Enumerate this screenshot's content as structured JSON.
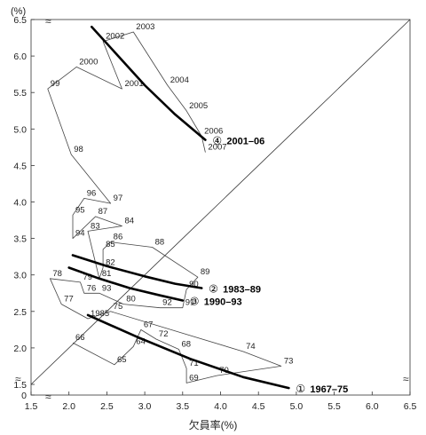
{
  "chart_data": {
    "type": "line",
    "title": "",
    "xlabel": "欠員率(%)",
    "ylabel": "(%)",
    "xlim": [
      1.5,
      6.5
    ],
    "ylim": [
      0,
      6.5
    ],
    "x_ticks": [
      "1.5",
      "2.0",
      "2.5",
      "3.0",
      "3.5",
      "4.0",
      "4.5",
      "5.0",
      "5.5",
      "6.0",
      "6.5"
    ],
    "y_ticks": [
      "0",
      "1.5",
      "2.0",
      "2.5",
      "3.0",
      "3.5",
      "4.0",
      "4.5",
      "5.0",
      "5.5",
      "6.0",
      "6.5"
    ],
    "reference_line": {
      "from": [
        1.5,
        1.5
      ],
      "to": [
        6.5,
        6.5
      ]
    },
    "axis_break_mark": "≈",
    "trajectory": {
      "name": "",
      "points": [
        {
          "label": "66",
          "x": 2.05,
          "y": 2.07
        },
        {
          "label": "65",
          "x": 2.6,
          "y": 1.77
        },
        {
          "label": "64",
          "x": 2.85,
          "y": 2.02
        },
        {
          "label": "67",
          "x": 2.95,
          "y": 2.25
        },
        {
          "label": "72",
          "x": 3.15,
          "y": 2.12
        },
        {
          "label": "68",
          "x": 3.45,
          "y": 1.98
        },
        {
          "label": "71",
          "x": 3.55,
          "y": 1.72
        },
        {
          "label": "69",
          "x": 3.55,
          "y": 1.52
        },
        {
          "label": "70",
          "x": 3.95,
          "y": 1.62
        },
        {
          "label": "73",
          "x": 4.8,
          "y": 1.75
        },
        {
          "label": "74",
          "x": 4.3,
          "y": 1.95
        },
        {
          "label": "75",
          "x": 2.55,
          "y": 2.5
        },
        {
          "label": "1985",
          "x": 2.25,
          "y": 2.4
        },
        {
          "label": "77",
          "x": 1.9,
          "y": 2.6
        },
        {
          "label": "78",
          "x": 1.75,
          "y": 2.95
        },
        {
          "label": "79",
          "x": 2.15,
          "y": 2.9
        },
        {
          "label": "76",
          "x": 2.2,
          "y": 2.75
        },
        {
          "label": "93",
          "x": 2.4,
          "y": 2.75
        },
        {
          "label": "80",
          "x": 2.72,
          "y": 2.6
        },
        {
          "label": "92",
          "x": 3.2,
          "y": 2.55
        },
        {
          "label": "91",
          "x": 3.5,
          "y": 2.55
        },
        {
          "label": "90",
          "x": 3.55,
          "y": 2.8
        },
        {
          "label": "89",
          "x": 3.7,
          "y": 2.97
        },
        {
          "label": "88",
          "x": 3.1,
          "y": 3.38
        },
        {
          "label": "86",
          "x": 2.55,
          "y": 3.45
        },
        {
          "label": "85",
          "x": 2.45,
          "y": 3.35
        },
        {
          "label": "82",
          "x": 2.45,
          "y": 3.1
        },
        {
          "label": "81",
          "x": 2.4,
          "y": 2.95
        },
        {
          "label": "83",
          "x": 2.25,
          "y": 3.6
        },
        {
          "label": "84",
          "x": 2.7,
          "y": 3.67
        },
        {
          "label": "87",
          "x": 2.35,
          "y": 3.8
        },
        {
          "label": "94",
          "x": 2.05,
          "y": 3.5
        },
        {
          "label": "95",
          "x": 2.05,
          "y": 3.82
        },
        {
          "label": "96",
          "x": 2.2,
          "y": 4.05
        },
        {
          "label": "97",
          "x": 2.55,
          "y": 3.98
        },
        {
          "label": "98",
          "x": 2.03,
          "y": 4.65
        },
        {
          "label": "99",
          "x": 1.72,
          "y": 5.55
        },
        {
          "label": "2000",
          "x": 2.1,
          "y": 5.85
        },
        {
          "label": "2001",
          "x": 2.7,
          "y": 5.55
        },
        {
          "label": "2002",
          "x": 2.45,
          "y": 6.2
        },
        {
          "label": "2003",
          "x": 2.85,
          "y": 6.33
        },
        {
          "label": "2004",
          "x": 3.3,
          "y": 5.6
        },
        {
          "label": "2005",
          "x": 3.55,
          "y": 5.25
        },
        {
          "label": "2006",
          "x": 3.75,
          "y": 4.9
        },
        {
          "label": "2007",
          "x": 3.8,
          "y": 4.68
        }
      ]
    },
    "fitted_curves": [
      {
        "circle": "①",
        "label": "1967–75",
        "points": [
          [
            2.25,
            2.45
          ],
          [
            2.9,
            2.15
          ],
          [
            3.6,
            1.85
          ],
          [
            4.3,
            1.6
          ],
          [
            4.9,
            1.45
          ]
        ]
      },
      {
        "circle": "②",
        "label": "1983–89",
        "points": [
          [
            2.05,
            3.27
          ],
          [
            2.5,
            3.12
          ],
          [
            3.0,
            2.98
          ],
          [
            3.4,
            2.88
          ],
          [
            3.75,
            2.82
          ]
        ]
      },
      {
        "circle": "③",
        "label": "1990–93",
        "points": [
          [
            2.0,
            3.1
          ],
          [
            2.4,
            2.95
          ],
          [
            2.8,
            2.82
          ],
          [
            3.2,
            2.72
          ],
          [
            3.5,
            2.65
          ]
        ]
      },
      {
        "circle": "④",
        "label": "2001–06",
        "points": [
          [
            2.3,
            6.4
          ],
          [
            2.65,
            6.0
          ],
          [
            3.0,
            5.6
          ],
          [
            3.4,
            5.2
          ],
          [
            3.8,
            4.85
          ]
        ]
      }
    ]
  }
}
